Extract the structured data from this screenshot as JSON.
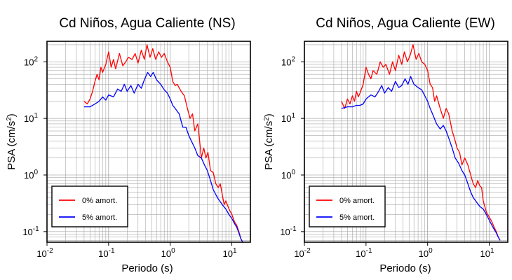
{
  "chart_data": [
    {
      "type": "line",
      "title": "Cd Niños, Agua Caliente (NS)",
      "xlabel": "Periodo (s)",
      "ylabel": "PSA (cm/s²)",
      "xscale": "log",
      "yscale": "log",
      "xlim": [
        0.01,
        20
      ],
      "ylim": [
        0.065,
        230
      ],
      "xticks": [
        {
          "value": 0.01,
          "base": "10",
          "exp": "-2"
        },
        {
          "value": 0.1,
          "base": "10",
          "exp": "-1"
        },
        {
          "value": 1,
          "base": "10",
          "exp": "0"
        },
        {
          "value": 10,
          "base": "10",
          "exp": "1"
        }
      ],
      "yticks": [
        {
          "value": 0.1,
          "base": "10",
          "exp": "-1"
        },
        {
          "value": 1,
          "base": "10",
          "exp": "0"
        },
        {
          "value": 10,
          "base": "10",
          "exp": "1"
        },
        {
          "value": 100,
          "base": "10",
          "exp": "2"
        }
      ],
      "grid": true,
      "legend_position": "bottom-left",
      "series": [
        {
          "name": "0% amort.",
          "color": "#ff0000",
          "points": [
            [
              0.04,
              20
            ],
            [
              0.045,
              18
            ],
            [
              0.05,
              22
            ],
            [
              0.055,
              30
            ],
            [
              0.06,
              45
            ],
            [
              0.065,
              60
            ],
            [
              0.07,
              48
            ],
            [
              0.075,
              80
            ],
            [
              0.08,
              65
            ],
            [
              0.09,
              90
            ],
            [
              0.1,
              150
            ],
            [
              0.11,
              80
            ],
            [
              0.12,
              110
            ],
            [
              0.13,
              75
            ],
            [
              0.15,
              140
            ],
            [
              0.17,
              85
            ],
            [
              0.19,
              100
            ],
            [
              0.21,
              120
            ],
            [
              0.24,
              110
            ],
            [
              0.27,
              140
            ],
            [
              0.3,
              95
            ],
            [
              0.34,
              160
            ],
            [
              0.38,
              110
            ],
            [
              0.42,
              200
            ],
            [
              0.47,
              120
            ],
            [
              0.52,
              170
            ],
            [
              0.58,
              110
            ],
            [
              0.65,
              150
            ],
            [
              0.72,
              120
            ],
            [
              0.8,
              140
            ],
            [
              0.9,
              100
            ],
            [
              1.0,
              80
            ],
            [
              1.1,
              45
            ],
            [
              1.2,
              38
            ],
            [
              1.3,
              40
            ],
            [
              1.5,
              30
            ],
            [
              1.7,
              25
            ],
            [
              1.9,
              15
            ],
            [
              2.1,
              10
            ],
            [
              2.3,
              12
            ],
            [
              2.5,
              6
            ],
            [
              2.8,
              8
            ],
            [
              3.0,
              4
            ],
            [
              3.2,
              2
            ],
            [
              3.5,
              3
            ],
            [
              3.8,
              2
            ],
            [
              4.1,
              2.5
            ],
            [
              4.5,
              1.2
            ],
            [
              5.0,
              1.1
            ],
            [
              5.5,
              0.7
            ],
            [
              6.0,
              0.6
            ],
            [
              6.5,
              0.7
            ],
            [
              7.0,
              0.45
            ],
            [
              7.5,
              0.3
            ],
            [
              8.0,
              0.35
            ],
            [
              9.0,
              0.25
            ],
            [
              10,
              0.2
            ],
            [
              11,
              0.15
            ],
            [
              12,
              0.13
            ],
            [
              13,
              0.1
            ],
            [
              14,
              0.075
            ],
            [
              15,
              0.065
            ]
          ]
        },
        {
          "name": "5% amort.",
          "color": "#0000ff",
          "points": [
            [
              0.04,
              16
            ],
            [
              0.05,
              16
            ],
            [
              0.06,
              18
            ],
            [
              0.07,
              20
            ],
            [
              0.08,
              24
            ],
            [
              0.09,
              21
            ],
            [
              0.1,
              26
            ],
            [
              0.12,
              24
            ],
            [
              0.14,
              33
            ],
            [
              0.16,
              30
            ],
            [
              0.18,
              40
            ],
            [
              0.2,
              30
            ],
            [
              0.23,
              38
            ],
            [
              0.26,
              28
            ],
            [
              0.3,
              40
            ],
            [
              0.34,
              34
            ],
            [
              0.38,
              48
            ],
            [
              0.43,
              65
            ],
            [
              0.48,
              55
            ],
            [
              0.53,
              65
            ],
            [
              0.6,
              48
            ],
            [
              0.7,
              40
            ],
            [
              0.8,
              32
            ],
            [
              0.9,
              28
            ],
            [
              1.0,
              22
            ],
            [
              1.1,
              17
            ],
            [
              1.2,
              15
            ],
            [
              1.4,
              12
            ],
            [
              1.6,
              7
            ],
            [
              1.8,
              7
            ],
            [
              2.0,
              5
            ],
            [
              2.2,
              4
            ],
            [
              2.5,
              3
            ],
            [
              2.8,
              2.2
            ],
            [
              3.2,
              2
            ],
            [
              3.6,
              1.5
            ],
            [
              4.0,
              1.2
            ],
            [
              4.5,
              0.8
            ],
            [
              5.0,
              0.55
            ],
            [
              5.5,
              0.45
            ],
            [
              6.0,
              0.38
            ],
            [
              7.0,
              0.3
            ],
            [
              8.0,
              0.25
            ],
            [
              9.0,
              0.2
            ],
            [
              10,
              0.17
            ],
            [
              11,
              0.14
            ],
            [
              12,
              0.12
            ],
            [
              13,
              0.095
            ],
            [
              14,
              0.075
            ],
            [
              15,
              0.065
            ]
          ]
        }
      ]
    },
    {
      "type": "line",
      "title": "Cd Niños, Agua Caliente (EW)",
      "xlabel": "Periodo (s)",
      "ylabel": "PSA (cm/s²)",
      "xscale": "log",
      "yscale": "log",
      "xlim": [
        0.01,
        20
      ],
      "ylim": [
        0.065,
        230
      ],
      "xticks": [
        {
          "value": 0.01,
          "base": "10",
          "exp": "-2"
        },
        {
          "value": 0.1,
          "base": "10",
          "exp": "-1"
        },
        {
          "value": 1,
          "base": "10",
          "exp": "0"
        },
        {
          "value": 10,
          "base": "10",
          "exp": "1"
        }
      ],
      "yticks": [
        {
          "value": 0.1,
          "base": "10",
          "exp": "-1"
        },
        {
          "value": 1,
          "base": "10",
          "exp": "0"
        },
        {
          "value": 10,
          "base": "10",
          "exp": "1"
        },
        {
          "value": 100,
          "base": "10",
          "exp": "2"
        }
      ],
      "grid": true,
      "legend_position": "bottom-left",
      "series": [
        {
          "name": "0% amort.",
          "color": "#ff0000",
          "points": [
            [
              0.04,
              20
            ],
            [
              0.045,
              15
            ],
            [
              0.05,
              22
            ],
            [
              0.055,
              18
            ],
            [
              0.06,
              25
            ],
            [
              0.065,
              20
            ],
            [
              0.07,
              30
            ],
            [
              0.075,
              24
            ],
            [
              0.08,
              28
            ],
            [
              0.09,
              40
            ],
            [
              0.1,
              80
            ],
            [
              0.11,
              60
            ],
            [
              0.12,
              50
            ],
            [
              0.13,
              70
            ],
            [
              0.15,
              60
            ],
            [
              0.17,
              100
            ],
            [
              0.19,
              80
            ],
            [
              0.21,
              90
            ],
            [
              0.24,
              60
            ],
            [
              0.27,
              100
            ],
            [
              0.3,
              70
            ],
            [
              0.34,
              130
            ],
            [
              0.38,
              90
            ],
            [
              0.42,
              150
            ],
            [
              0.47,
              100
            ],
            [
              0.52,
              130
            ],
            [
              0.58,
              200
            ],
            [
              0.65,
              110
            ],
            [
              0.72,
              140
            ],
            [
              0.8,
              100
            ],
            [
              0.9,
              90
            ],
            [
              1.0,
              70
            ],
            [
              1.1,
              40
            ],
            [
              1.2,
              35
            ],
            [
              1.3,
              20
            ],
            [
              1.4,
              25
            ],
            [
              1.6,
              15
            ],
            [
              1.8,
              10
            ],
            [
              2.0,
              15
            ],
            [
              2.2,
              12
            ],
            [
              2.5,
              6
            ],
            [
              2.8,
              4
            ],
            [
              3.0,
              3
            ],
            [
              3.3,
              2.5
            ],
            [
              3.6,
              1.5
            ],
            [
              4.0,
              2
            ],
            [
              4.5,
              1.5
            ],
            [
              5.0,
              1
            ],
            [
              5.5,
              0.7
            ],
            [
              6.0,
              0.6
            ],
            [
              6.5,
              0.8
            ],
            [
              7.0,
              0.65
            ],
            [
              7.5,
              0.6
            ],
            [
              8.0,
              0.35
            ],
            [
              9.0,
              0.22
            ],
            [
              10,
              0.18
            ],
            [
              11,
              0.15
            ],
            [
              12,
              0.12
            ],
            [
              13,
              0.1
            ],
            [
              14,
              0.08
            ],
            [
              15,
              0.07
            ]
          ]
        },
        {
          "name": "5% amort.",
          "color": "#0000ff",
          "points": [
            [
              0.04,
              15
            ],
            [
              0.05,
              16
            ],
            [
              0.06,
              16
            ],
            [
              0.07,
              17
            ],
            [
              0.08,
              17
            ],
            [
              0.09,
              18
            ],
            [
              0.1,
              22
            ],
            [
              0.12,
              26
            ],
            [
              0.14,
              24
            ],
            [
              0.16,
              30
            ],
            [
              0.18,
              38
            ],
            [
              0.2,
              28
            ],
            [
              0.23,
              35
            ],
            [
              0.26,
              30
            ],
            [
              0.3,
              45
            ],
            [
              0.34,
              35
            ],
            [
              0.38,
              38
            ],
            [
              0.43,
              50
            ],
            [
              0.48,
              40
            ],
            [
              0.53,
              55
            ],
            [
              0.6,
              40
            ],
            [
              0.7,
              35
            ],
            [
              0.8,
              32
            ],
            [
              0.9,
              25
            ],
            [
              1.0,
              20
            ],
            [
              1.1,
              15
            ],
            [
              1.2,
              12
            ],
            [
              1.4,
              8
            ],
            [
              1.6,
              6.5
            ],
            [
              1.8,
              7.5
            ],
            [
              2.0,
              6
            ],
            [
              2.2,
              4.5
            ],
            [
              2.5,
              3
            ],
            [
              2.8,
              2
            ],
            [
              3.2,
              1.6
            ],
            [
              3.6,
              1.2
            ],
            [
              4.0,
              1
            ],
            [
              4.5,
              0.7
            ],
            [
              5.0,
              0.5
            ],
            [
              5.5,
              0.4
            ],
            [
              6.0,
              0.35
            ],
            [
              7.0,
              0.28
            ],
            [
              8.0,
              0.25
            ],
            [
              9.0,
              0.2
            ],
            [
              10,
              0.16
            ],
            [
              11,
              0.13
            ],
            [
              12,
              0.11
            ],
            [
              13,
              0.095
            ],
            [
              14,
              0.08
            ],
            [
              15,
              0.07
            ]
          ]
        }
      ]
    }
  ]
}
